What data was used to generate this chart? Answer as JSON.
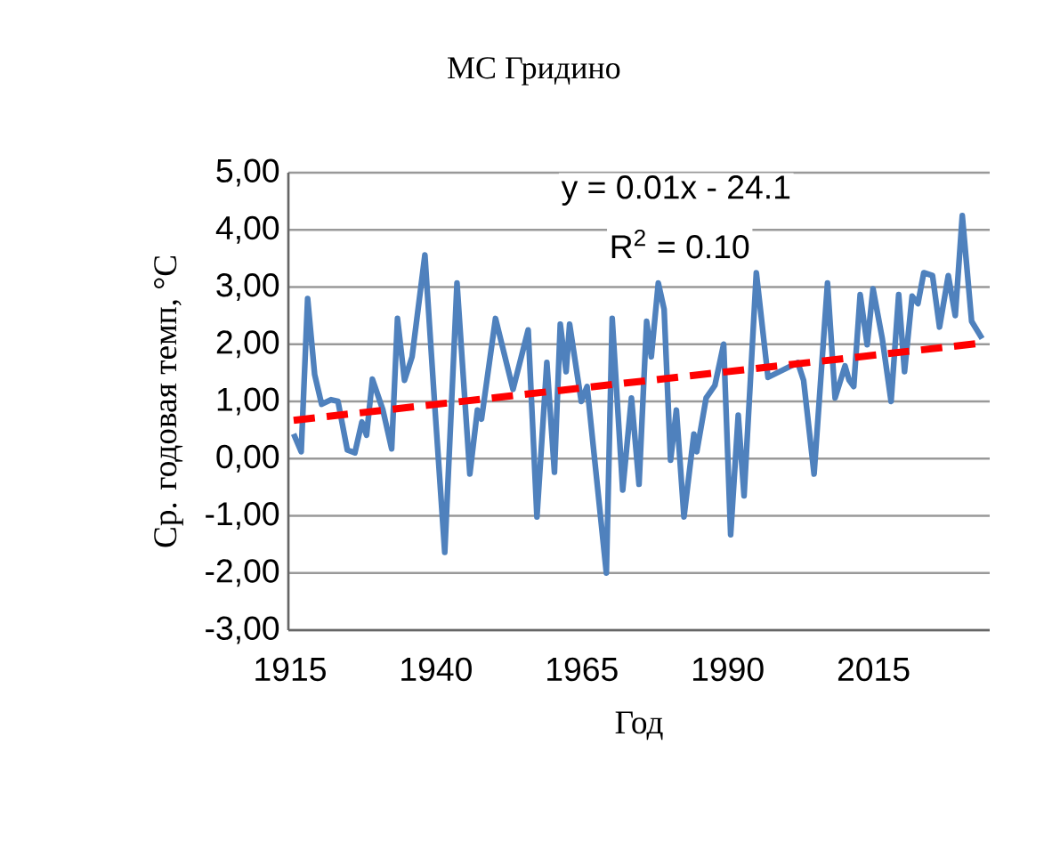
{
  "chart_data": {
    "type": "line",
    "title": "МС Гридино",
    "xlabel": "Год",
    "ylabel": "Ср.  годовая темп,  °C",
    "xlim": [
      1914.7,
      2034.9
    ],
    "xticks": [
      1915,
      1940,
      1965,
      1990,
      2015
    ],
    "ylim": [
      -3,
      5
    ],
    "yticks": [
      {
        "value": -3,
        "label": "-3,00"
      },
      {
        "value": -2,
        "label": "-2,00"
      },
      {
        "value": -1,
        "label": "-1,00"
      },
      {
        "value": 0,
        "label": "0,00"
      },
      {
        "value": 1,
        "label": "1,00"
      },
      {
        "value": 2,
        "label": "2,00"
      },
      {
        "value": 3,
        "label": "3,00"
      },
      {
        "value": 4,
        "label": "4,00"
      },
      {
        "value": 5,
        "label": "5,00"
      }
    ],
    "grid": "y",
    "annotations": [
      "y = 0.01x - 24.1",
      "R$^{2}$ = 0.10"
    ],
    "series": [
      {
        "color": "#4f81bd",
        "line_style": "solid",
        "x": [
          1915.6,
          1916.9,
          1918.0,
          1919.2,
          1920.4,
          1922.0,
          1923.2,
          1924.8,
          1926.1,
          1927.3,
          1928.1,
          1929.1,
          1930.9,
          1932.4,
          1933.4,
          1934.6,
          1935.9,
          1938.1,
          1939.7,
          1941.5,
          1943.6,
          1945.8,
          1947.1,
          1947.8,
          1950.2,
          1953.2,
          1955.8,
          1957.3,
          1959.0,
          1960.3,
          1961.3,
          1962.3,
          1962.9,
          1964.9,
          1965.9,
          1969.2,
          1970.2,
          1972.0,
          1973.5,
          1974.8,
          1976.1,
          1976.9,
          1978.1,
          1979.1,
          1980.2,
          1981.2,
          1982.5,
          1984.2,
          1984.7,
          1986.3,
          1987.8,
          1989.3,
          1990.5,
          1991.8,
          1992.8,
          1994.9,
          1996.9,
          2002.0,
          2003.0,
          2004.8,
          2007.1,
          2008.4,
          2010.1,
          2010.8,
          2011.6,
          2012.7,
          2013.9,
          2014.9,
          2016.5,
          2018.0,
          2019.3,
          2020.3,
          2021.6,
          2022.6,
          2023.6,
          2025.1,
          2026.3,
          2027.8,
          2029.0,
          2030.2,
          2031.8,
          2033.6
        ],
        "values": [
          0.43,
          0.12,
          2.8,
          1.47,
          0.95,
          1.03,
          1.0,
          0.15,
          0.1,
          0.64,
          0.41,
          1.39,
          0.85,
          0.17,
          2.45,
          1.37,
          1.78,
          3.56,
          1.06,
          -1.64,
          3.07,
          -0.27,
          0.85,
          0.69,
          2.45,
          1.21,
          2.25,
          -1.02,
          1.68,
          -0.24,
          2.35,
          1.52,
          2.35,
          1.0,
          1.26,
          -2.0,
          2.45,
          -0.55,
          1.06,
          -0.45,
          2.4,
          1.78,
          3.07,
          2.61,
          -0.03,
          0.85,
          -1.02,
          0.43,
          0.12,
          1.06,
          1.28,
          2.0,
          -1.33,
          0.76,
          -0.65,
          3.25,
          1.42,
          1.68,
          1.37,
          -0.27,
          3.07,
          1.06,
          1.62,
          1.37,
          1.26,
          2.87,
          1.99,
          2.97,
          2.09,
          1.0,
          2.87,
          1.52,
          2.84,
          2.71,
          3.25,
          3.2,
          2.3,
          3.2,
          2.5,
          4.25,
          2.4,
          2.1
        ]
      },
      {
        "color": "#ff0000",
        "line_style": "dashed",
        "x": [
          1915.6,
          2033.6
        ],
        "values": [
          0.67,
          2.02
        ]
      }
    ]
  }
}
